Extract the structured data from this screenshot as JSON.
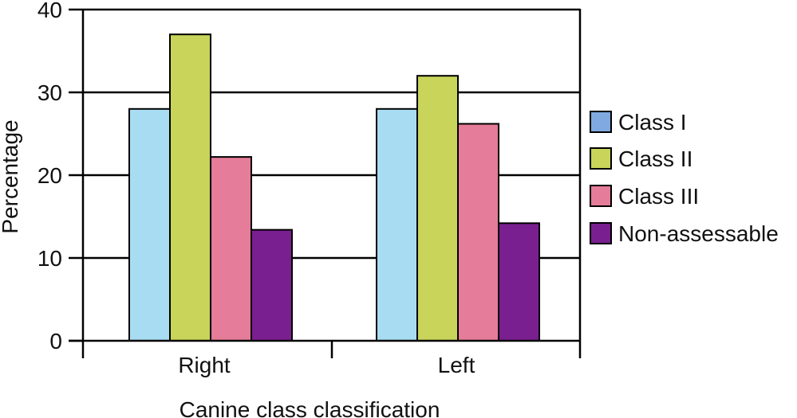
{
  "chart_data": {
    "type": "bar",
    "categories": [
      "Right",
      "Left"
    ],
    "series": [
      {
        "name": "Class I",
        "values": [
          28,
          28
        ],
        "color": "#a8dcf2",
        "legend_color": "#7fa9e0"
      },
      {
        "name": "Class II",
        "values": [
          37,
          32
        ],
        "color": "#c8d45a",
        "legend_color": "#c8d45a"
      },
      {
        "name": "Class III",
        "values": [
          22.2,
          26.2
        ],
        "color": "#e57c99",
        "legend_color": "#e57c99"
      },
      {
        "name": "Non-assessable",
        "values": [
          13.4,
          14.2
        ],
        "color": "#7a1f8f",
        "legend_color": "#7a1f8f"
      }
    ],
    "title": "",
    "xlabel": "Canine class classification",
    "ylabel": "Percentage",
    "ylim": [
      0,
      40
    ],
    "yticks": [
      0,
      10,
      20,
      30,
      40
    ],
    "grid": true,
    "legend_position": "right"
  }
}
